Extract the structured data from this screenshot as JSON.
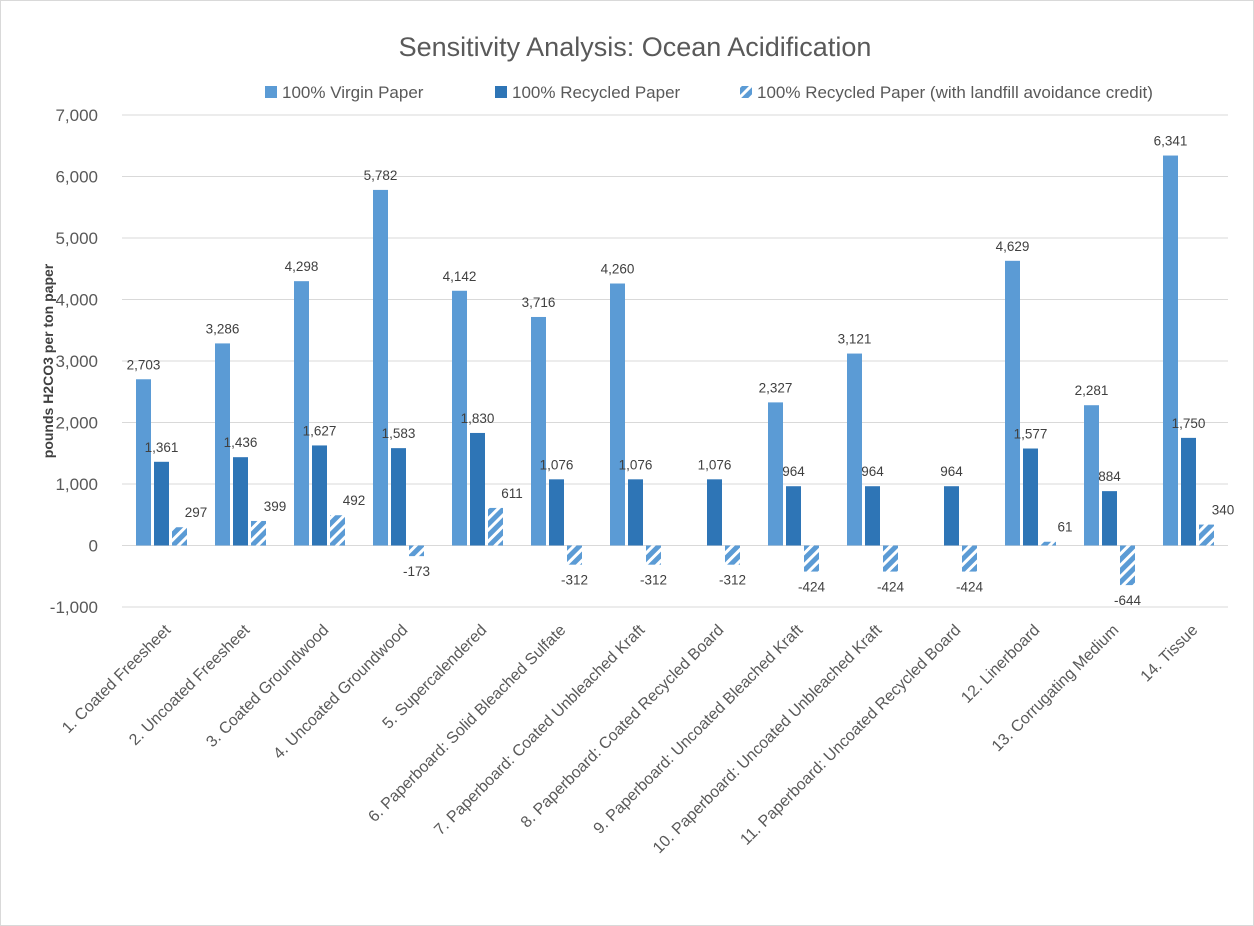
{
  "chart_data": {
    "type": "bar",
    "title": "Sensitivity Analysis: Ocean Acidification",
    "ylabel": "pounds H2CO3 per ton paper",
    "xlabel": "",
    "ylim": [
      -1000,
      7000
    ],
    "yticks": [
      -1000,
      0,
      1000,
      2000,
      3000,
      4000,
      5000,
      6000,
      7000
    ],
    "ytick_labels": [
      "-1,000",
      "0",
      "1,000",
      "2,000",
      "3,000",
      "4,000",
      "5,000",
      "6,000",
      "7,000"
    ],
    "grid": true,
    "legend_position": "top",
    "categories": [
      "1. Coated Freesheet",
      "2. Uncoated Freesheet",
      "3. Coated Groundwood",
      "4. Uncoated Groundwood",
      "5. Supercalendered",
      "6. Paperboard: Solid Bleached Sulfate",
      "7. Paperboard: Coated Unbleached Kraft",
      "8. Paperboard: Coated Recycled Board",
      "9. Paperboard: Uncoated Bleached Kraft",
      "10. Paperboard: Uncoated Unbleached Kraft",
      "11. Paperboard: Uncoated Recycled Board",
      "12. Linerboard",
      "13. Corrugating Medium",
      "14. Tissue"
    ],
    "series": [
      {
        "name": "100% Virgin Paper",
        "color": "#5b9bd5",
        "pattern": "solid",
        "values": [
          2703,
          3286,
          4298,
          5782,
          4142,
          3716,
          4260,
          null,
          2327,
          3121,
          null,
          4629,
          2281,
          6341
        ],
        "labels": [
          "2,703",
          "3,286",
          "4,298",
          "5,782",
          "4,142",
          "3,716",
          "4,260",
          null,
          "2,327",
          "3,121",
          null,
          "4,629",
          "2,281",
          "6,341"
        ]
      },
      {
        "name": "100% Recycled Paper",
        "color": "#2e75b6",
        "pattern": "solid",
        "values": [
          1361,
          1436,
          1627,
          1583,
          1830,
          1076,
          1076,
          1076,
          964,
          964,
          964,
          1577,
          884,
          1750
        ],
        "labels": [
          "1,361",
          "1,436",
          "1,627",
          "1,583",
          "1,830",
          "1,076",
          "1,076",
          "1,076",
          "964",
          "964",
          "964",
          "1,577",
          "884",
          "1,750"
        ]
      },
      {
        "name": "100% Recycled Paper (with landfill avoidance credit)",
        "color": "#5b9bd5",
        "pattern": "diagonal-stripes",
        "values": [
          297,
          399,
          492,
          -173,
          611,
          -312,
          -312,
          -312,
          -424,
          -424,
          -424,
          61,
          -644,
          340
        ],
        "labels": [
          "297",
          "399",
          "492",
          "-173",
          "611",
          "-312",
          "-312",
          "-312",
          "-424",
          "-424",
          "-424",
          "61",
          "-644",
          "340"
        ]
      }
    ]
  }
}
